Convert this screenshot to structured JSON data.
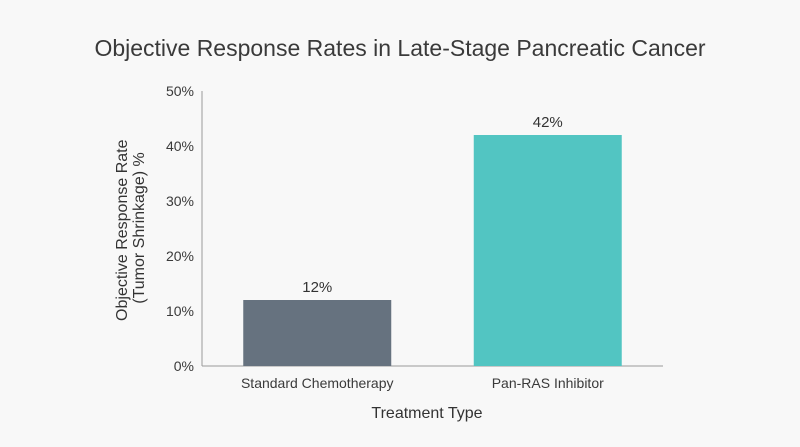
{
  "chart_data": {
    "type": "bar",
    "title": "Objective Response Rates in Late-Stage Pancreatic Cancer",
    "categories": [
      "Standard Chemotherapy",
      "Pan-RAS Inhibitor"
    ],
    "values": [
      12,
      42
    ],
    "data_labels": [
      "12%",
      "42%"
    ],
    "colors": [
      "#66727f",
      "#52c5c2"
    ],
    "xlabel": "Treatment Type",
    "ylabel_lines": [
      "Objective Response Rate",
      "(Tumor Shrinkage) %"
    ],
    "ylim": [
      0,
      50
    ],
    "yticks": [
      0,
      10,
      20,
      30,
      40,
      50
    ],
    "ytick_labels": [
      "0%",
      "10%",
      "20%",
      "30%",
      "40%",
      "50%"
    ],
    "grid": false,
    "legend": "none"
  }
}
